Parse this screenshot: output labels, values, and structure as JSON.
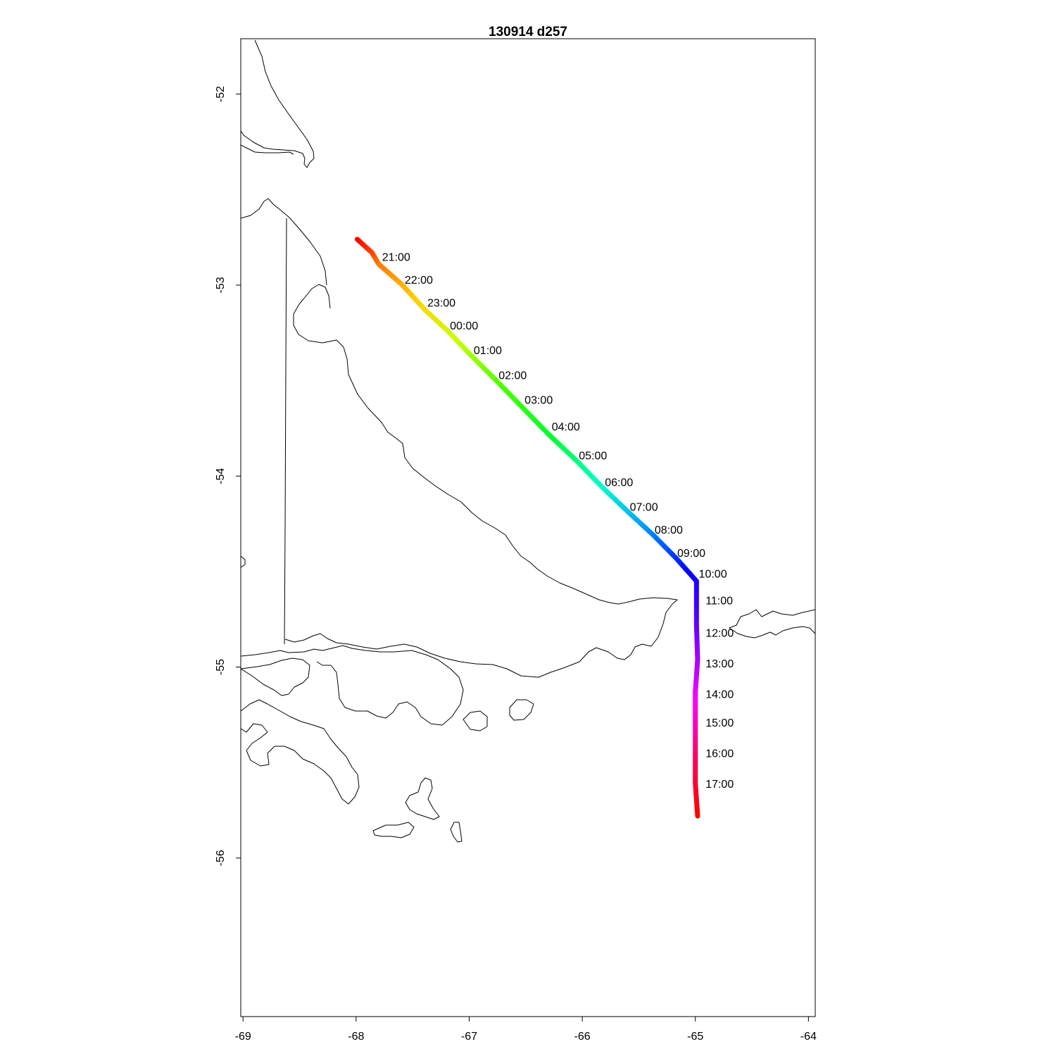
{
  "title": "130914   d257",
  "map": {
    "type": "track",
    "projection": "lon-lat",
    "x_range": [
      -69.02,
      -63.94
    ],
    "y_range": [
      -56.83,
      -51.71
    ],
    "x_ticks": [
      {
        "value": -69,
        "label": "-69"
      },
      {
        "value": -68,
        "label": "-68"
      },
      {
        "value": -67,
        "label": "-67"
      },
      {
        "value": -66,
        "label": "-66"
      },
      {
        "value": -65,
        "label": "-65"
      },
      {
        "value": -64,
        "label": "-64"
      }
    ],
    "y_ticks": [
      {
        "value": -52,
        "label": "-52"
      },
      {
        "value": -53,
        "label": "-53"
      },
      {
        "value": -54,
        "label": "-54"
      },
      {
        "value": -55,
        "label": "-55"
      },
      {
        "value": -56,
        "label": "-56"
      }
    ],
    "track_colors": [
      "#ff0000",
      "#ff6a00",
      "#ffd200",
      "#c8ff00",
      "#48ff00",
      "#00ff30",
      "#00ffd0",
      "#0090ff",
      "#0000ff",
      "#8000ff",
      "#ff00ff",
      "#ff0060",
      "#ff0000"
    ],
    "track": [
      {
        "lon": -67.99,
        "lat": -52.76
      },
      {
        "lon": -67.86,
        "lat": -52.83
      },
      {
        "lon": -67.8,
        "lat": -52.89
      },
      {
        "lon": -67.59,
        "lat": -53.0
      },
      {
        "lon": -67.39,
        "lat": -53.13
      },
      {
        "lon": -67.19,
        "lat": -53.24
      },
      {
        "lon": -66.98,
        "lat": -53.37
      },
      {
        "lon": -66.76,
        "lat": -53.5
      },
      {
        "lon": -66.53,
        "lat": -53.64
      },
      {
        "lon": -66.3,
        "lat": -53.78
      },
      {
        "lon": -66.05,
        "lat": -53.92
      },
      {
        "lon": -65.82,
        "lat": -54.06
      },
      {
        "lon": -65.59,
        "lat": -54.19
      },
      {
        "lon": -65.37,
        "lat": -54.31
      },
      {
        "lon": -65.17,
        "lat": -54.43
      },
      {
        "lon": -64.99,
        "lat": -54.55
      },
      {
        "lon": -64.99,
        "lat": -54.78
      },
      {
        "lon": -64.98,
        "lat": -54.96
      },
      {
        "lon": -65.0,
        "lat": -55.13
      },
      {
        "lon": -65.0,
        "lat": -55.29
      },
      {
        "lon": -65.0,
        "lat": -55.45
      },
      {
        "lon": -65.0,
        "lat": -55.61
      },
      {
        "lon": -64.98,
        "lat": -55.78
      }
    ],
    "time_labels": [
      {
        "text": "21:00",
        "lon": -67.77,
        "lat": -52.85
      },
      {
        "text": "22:00",
        "lon": -67.57,
        "lat": -52.97
      },
      {
        "text": "23:00",
        "lon": -67.37,
        "lat": -53.09
      },
      {
        "text": "00:00",
        "lon": -67.17,
        "lat": -53.21
      },
      {
        "text": "01:00",
        "lon": -66.96,
        "lat": -53.34
      },
      {
        "text": "02:00",
        "lon": -66.74,
        "lat": -53.47
      },
      {
        "text": "03:00",
        "lon": -66.51,
        "lat": -53.6
      },
      {
        "text": "04:00",
        "lon": -66.27,
        "lat": -53.74
      },
      {
        "text": "05:00",
        "lon": -66.03,
        "lat": -53.89
      },
      {
        "text": "06:00",
        "lon": -65.8,
        "lat": -54.03
      },
      {
        "text": "07:00",
        "lon": -65.58,
        "lat": -54.16
      },
      {
        "text": "08:00",
        "lon": -65.36,
        "lat": -54.28
      },
      {
        "text": "09:00",
        "lon": -65.16,
        "lat": -54.4
      },
      {
        "text": "10:00",
        "lon": -64.97,
        "lat": -54.51
      },
      {
        "text": "11:00",
        "lon": -64.91,
        "lat": -54.65
      },
      {
        "text": "12:00",
        "lon": -64.91,
        "lat": -54.82
      },
      {
        "text": "13:00",
        "lon": -64.91,
        "lat": -54.98
      },
      {
        "text": "14:00",
        "lon": -64.91,
        "lat": -55.14
      },
      {
        "text": "15:00",
        "lon": -64.91,
        "lat": -55.29
      },
      {
        "text": "16:00",
        "lon": -64.91,
        "lat": -55.45
      },
      {
        "text": "17:00",
        "lon": -64.91,
        "lat": -55.61
      }
    ]
  }
}
